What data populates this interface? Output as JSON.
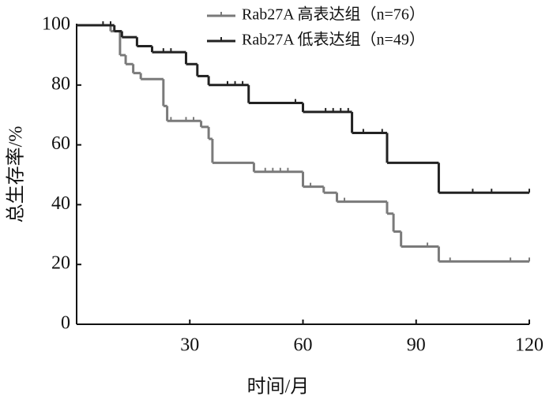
{
  "chart_data": {
    "type": "step",
    "xlabel": "时间/月",
    "ylabel": "总生存率/%",
    "xlim": [
      0,
      120
    ],
    "ylim": [
      0,
      100
    ],
    "xticks": [
      30,
      60,
      90,
      120
    ],
    "yticks": [
      0,
      20,
      40,
      60,
      80,
      100
    ],
    "series": [
      {
        "name": "Rab27A 高表达组（n=76）",
        "color": "#7a7a7a",
        "x": [
          0,
          9,
          11.5,
          13,
          15,
          17,
          23,
          24,
          33,
          35,
          36,
          47,
          60,
          65.5,
          69,
          82.3,
          84,
          86,
          96,
          120
        ],
        "values": [
          100,
          98,
          90,
          87,
          84,
          82,
          73,
          68,
          66,
          62,
          54,
          51,
          46,
          44,
          41,
          37,
          31,
          26,
          21,
          21
        ],
        "censored": [
          25,
          29,
          31,
          50,
          52,
          54,
          56,
          62,
          69,
          71,
          93,
          99,
          115,
          120
        ]
      },
      {
        "name": "Rab27A 低表达组（n=49）",
        "color": "#222222",
        "x": [
          0,
          10,
          12,
          16,
          20,
          29,
          32,
          35,
          45.6,
          60,
          73,
          82.3,
          96,
          120
        ],
        "values": [
          100,
          98,
          96,
          93,
          91,
          87,
          83,
          80,
          74,
          71,
          64,
          54,
          44,
          44
        ],
        "censored": [
          7,
          9,
          23,
          25,
          40,
          42,
          44,
          58,
          66,
          68,
          70,
          72,
          76,
          81,
          105,
          110,
          120
        ]
      }
    ]
  }
}
